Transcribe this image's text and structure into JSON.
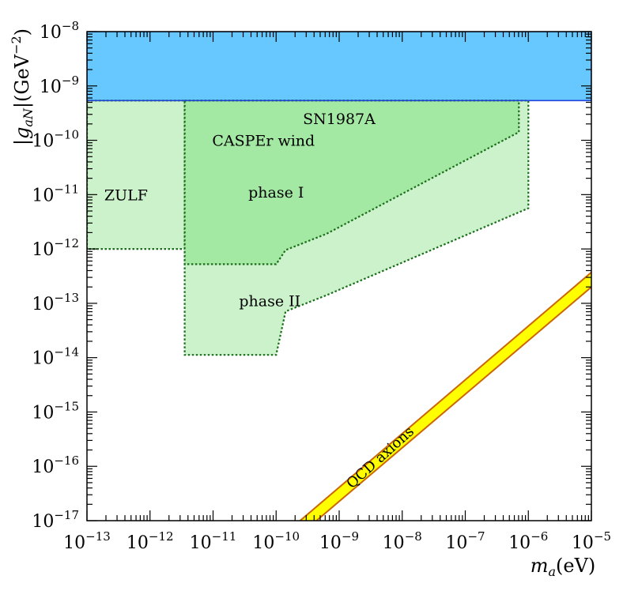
{
  "chart_data": {
    "type": "area",
    "xlabel_var": "m",
    "xlabel_sub": "a",
    "xlabel_unit": "(eV)",
    "ylabel_var": "|g",
    "ylabel_sub": "aN",
    "ylabel_unit_pre": "|(GeV",
    "ylabel_unit_exp": "−2",
    "ylabel_unit_post": ")",
    "x_log_range": [
      -13,
      -5
    ],
    "y_log_range": [
      -17,
      -8
    ],
    "x_ticks": [
      {
        "base": "10",
        "exp": "−13",
        "v": -13
      },
      {
        "base": "10",
        "exp": "−12",
        "v": -12
      },
      {
        "base": "10",
        "exp": "−11",
        "v": -11
      },
      {
        "base": "10",
        "exp": "−10",
        "v": -10
      },
      {
        "base": "10",
        "exp": "−9",
        "v": -9
      },
      {
        "base": "10",
        "exp": "−8",
        "v": -8
      },
      {
        "base": "10",
        "exp": "−7",
        "v": -7
      },
      {
        "base": "10",
        "exp": "−6",
        "v": -6
      },
      {
        "base": "10",
        "exp": "−5",
        "v": -5
      }
    ],
    "y_ticks": [
      {
        "base": "10",
        "exp": "−8",
        "v": -8
      },
      {
        "base": "10",
        "exp": "−9",
        "v": -9
      },
      {
        "base": "10",
        "exp": "−10",
        "v": -10
      },
      {
        "base": "10",
        "exp": "−11",
        "v": -11
      },
      {
        "base": "10",
        "exp": "−12",
        "v": -12
      },
      {
        "base": "10",
        "exp": "−13",
        "v": -13
      },
      {
        "base": "10",
        "exp": "−14",
        "v": -14
      },
      {
        "base": "10",
        "exp": "−15",
        "v": -15
      },
      {
        "base": "10",
        "exp": "−16",
        "v": -16
      },
      {
        "base": "10",
        "exp": "−17",
        "v": -17
      }
    ],
    "regions": [
      {
        "name": "SN1987A",
        "fill": "#66c8ff",
        "stroke": "#2244dd",
        "dashed": false,
        "polygon_log": [
          [
            -13,
            -8
          ],
          [
            -5,
            -8
          ],
          [
            -5,
            -9.27
          ],
          [
            -13,
            -9.27
          ]
        ],
        "label": "SN1987A",
        "label_at_log": [
          -9.0,
          -9.6
        ]
      },
      {
        "name": "ZULF",
        "fill": "#ccf2cc",
        "stroke": "#1a6e1a",
        "dashed": true,
        "polygon_log": [
          [
            -13,
            -9.27
          ],
          [
            -11.45,
            -9.27
          ],
          [
            -11.45,
            -12.0
          ],
          [
            -13,
            -12.0
          ]
        ],
        "label": "ZULF",
        "label_at_log": [
          -12.38,
          -11.0
        ]
      },
      {
        "name": "CASPEr wind phase II",
        "fill": "#ccf2cc",
        "stroke": "#1a6e1a",
        "dashed": true,
        "polygon_log": [
          [
            -11.45,
            -9.27
          ],
          [
            -6.0,
            -9.27
          ],
          [
            -6.0,
            -11.25
          ],
          [
            -9.2,
            -12.85
          ],
          [
            -9.85,
            -13.15
          ],
          [
            -10.0,
            -13.95
          ],
          [
            -11.45,
            -13.95
          ]
        ],
        "label": "phase II",
        "label_at_log": [
          -10.1,
          -12.95
        ]
      },
      {
        "name": "CASPEr wind phase I",
        "fill": "#a3e8a3",
        "stroke": "#1a6e1a",
        "dashed": true,
        "polygon_log": [
          [
            -11.45,
            -9.27
          ],
          [
            -6.15,
            -9.27
          ],
          [
            -6.15,
            -9.85
          ],
          [
            -9.2,
            -11.72
          ],
          [
            -9.85,
            -12.02
          ],
          [
            -10.0,
            -12.28
          ],
          [
            -11.45,
            -12.28
          ]
        ],
        "label": "phase I",
        "label_at_log": [
          -10.0,
          -10.95
        ]
      }
    ],
    "region_header_label": "CASPEr wind",
    "region_header_at_log": [
      -10.2,
      -10.0
    ],
    "band": {
      "name": "QCD axions",
      "fill": "#ffff00",
      "stroke": "#cc6600",
      "lower_line_log": [
        [
          -9.36,
          -17.0
        ],
        [
          -5.0,
          -12.7
        ]
      ],
      "upper_line_log": [
        [
          -9.62,
          -17.0
        ],
        [
          -5.0,
          -12.43
        ]
      ],
      "label": "QCD axions",
      "label_at_log": [
        -8.3,
        -15.9
      ],
      "label_angle": -42
    }
  }
}
